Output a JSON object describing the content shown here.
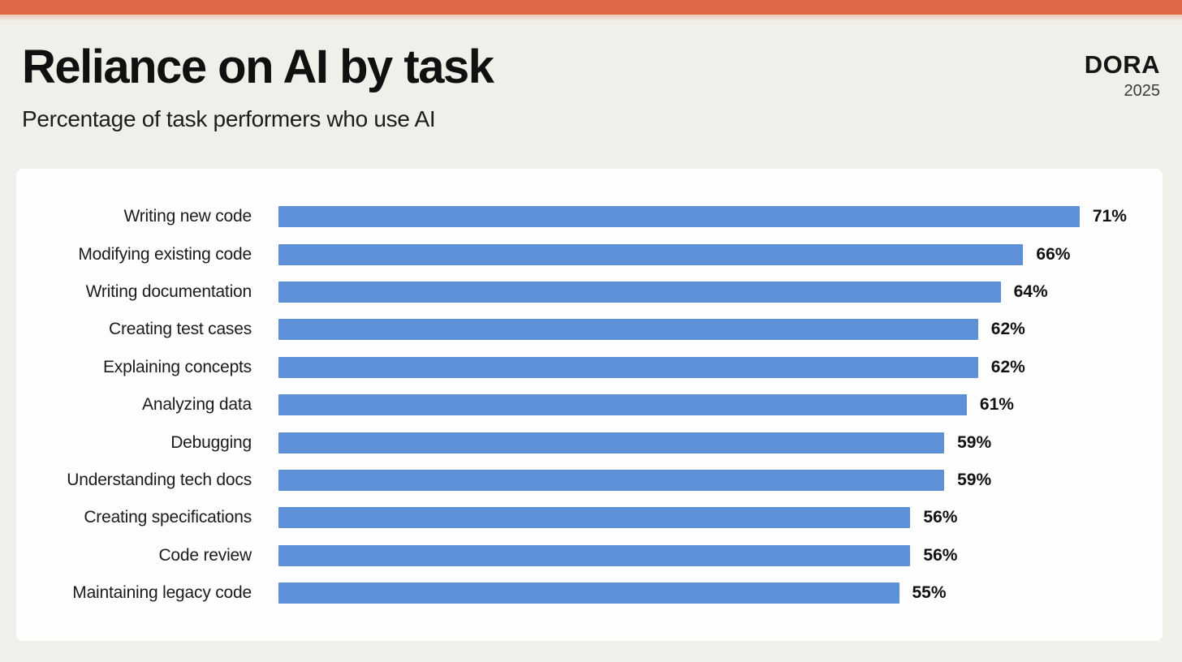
{
  "header": {
    "title": "Reliance on AI by task",
    "subtitle": "Percentage of task performers who use AI",
    "logo": "DORA",
    "year": "2025"
  },
  "colors": {
    "accent_orange": "#dd6845",
    "bar_blue": "#5d90d6",
    "page_background": "#f0efea",
    "panel_background": "#fefefe",
    "text_primary": "#1b1b1b"
  },
  "chart_data": {
    "type": "bar",
    "orientation": "horizontal",
    "title": "Reliance on AI by task",
    "subtitle": "Percentage of task performers who use AI",
    "categories": [
      "Writing new code",
      "Modifying existing code",
      "Writing documentation",
      "Creating test cases",
      "Explaining concepts",
      "Analyzing data",
      "Debugging",
      "Understanding tech docs",
      "Creating specifications",
      "Code review",
      "Maintaining legacy code"
    ],
    "values": [
      71,
      66,
      64,
      62,
      62,
      61,
      59,
      59,
      56,
      56,
      55
    ],
    "value_suffix": "%",
    "xlim": [
      0,
      100
    ],
    "grid": false,
    "legend": false,
    "bar_color": "#5d90d6",
    "sort": "descending"
  }
}
